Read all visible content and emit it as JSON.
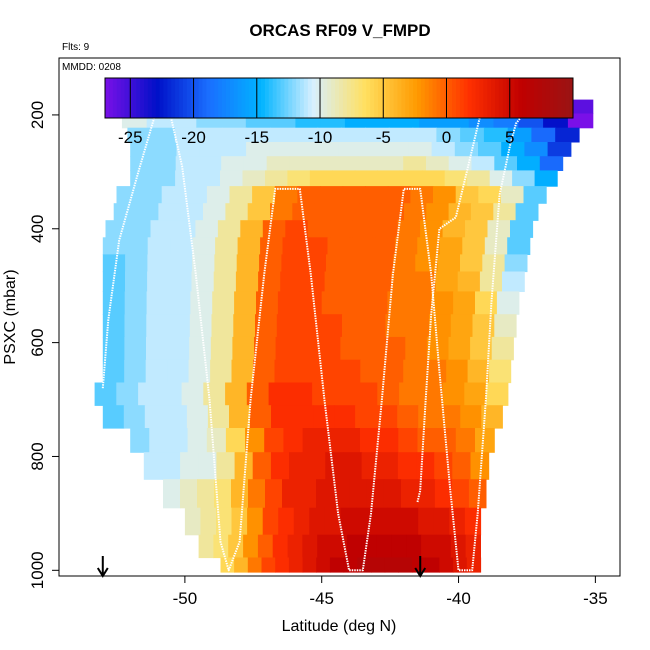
{
  "chart_data": {
    "type": "heatmap",
    "title": "ORCAS RF09 V_FMPD",
    "flights_label": "Flts: 9",
    "date_label": "MMDD: 0208",
    "xlabel": "Latitude (deg N)",
    "ylabel": "PSXC (mbar)",
    "xlim": [
      -54.6,
      -34.1
    ],
    "ylim": [
      1010,
      100
    ],
    "xticks": [
      -50,
      -45,
      -40,
      -35
    ],
    "xtick_labels": [
      "-50",
      "-45",
      "-40",
      "-35"
    ],
    "yticks": [
      200,
      400,
      600,
      800,
      1000
    ],
    "ytick_labels": [
      "200",
      "400",
      "600",
      "800",
      "1000"
    ],
    "colorbar": {
      "range": [
        -27,
        10
      ],
      "ticks": [
        -25,
        -20,
        -15,
        -10,
        -5,
        0,
        5
      ],
      "tick_labels": [
        "-25",
        "-20",
        "-15",
        "-10",
        "-5",
        "0",
        "5"
      ],
      "colors": [
        "#7a10e8",
        "#0010c8",
        "#1a6fff",
        "#00b4ff",
        "#d8f0ff",
        "#ffe060",
        "#ff9a00",
        "#ff3000",
        "#c00000",
        "#9a1414"
      ]
    },
    "pressure_rows": [
      {
        "p": 185,
        "lat_start": -52.3,
        "lat_end": -35.1,
        "values": [
          -11,
          -11,
          -11,
          -12,
          -12,
          -12,
          -13,
          -14,
          -14,
          -15,
          -15,
          -16,
          -17,
          -18,
          -19,
          -20,
          -22,
          -24,
          -26
        ]
      },
      {
        "p": 210,
        "lat_start": -52.3,
        "lat_end": -35.1,
        "values": [
          -10,
          -11,
          -11,
          -12,
          -12,
          -13,
          -13,
          -14,
          -14,
          -15,
          -15,
          -15,
          -16,
          -16,
          -17,
          -18,
          -20,
          -23,
          -27
        ]
      },
      {
        "p": 235,
        "lat_start": -52.1,
        "lat_end": -35.6,
        "values": [
          -12,
          -12,
          -11,
          -11,
          -11,
          -11,
          -11,
          -11,
          -11,
          -11,
          -11,
          -11,
          -11,
          -12,
          -13,
          -14,
          -16,
          -19,
          -22
        ]
      },
      {
        "p": 260,
        "lat_start": -52.0,
        "lat_end": -35.9,
        "values": [
          -12,
          -12,
          -11,
          -11,
          -11,
          -10,
          -10,
          -10,
          -10,
          -10,
          -10,
          -10,
          -10,
          -11,
          -12,
          -13,
          -15,
          -17,
          -21
        ]
      },
      {
        "p": 285,
        "lat_start": -52.0,
        "lat_end": -36.2,
        "values": [
          -12,
          -12,
          -11,
          -11,
          -10,
          -10,
          -9,
          -9,
          -9,
          -9,
          -9,
          -9,
          -8,
          -9,
          -10,
          -11,
          -13,
          -15,
          -19
        ]
      },
      {
        "p": 310,
        "lat_start": -52.0,
        "lat_end": -36.4,
        "values": [
          -12,
          -12,
          -11,
          -11,
          -10,
          -9,
          -8,
          -7,
          -6,
          -6,
          -6,
          -6,
          -6,
          -6,
          -7,
          -8,
          -10,
          -12,
          -15
        ]
      },
      {
        "p": 340,
        "lat_start": -52.5,
        "lat_end": -36.8,
        "values": [
          -12,
          -12,
          -11,
          -11,
          -10,
          -8,
          -5,
          -1,
          0,
          0,
          0,
          0,
          0,
          -1,
          -2,
          -5,
          -6,
          -9,
          -13
        ]
      },
      {
        "p": 370,
        "lat_start": -52.6,
        "lat_end": -37.1,
        "values": [
          -12,
          -12,
          -11,
          -11,
          -10,
          -8,
          -5,
          -1,
          0,
          0,
          0,
          0,
          0,
          -1,
          -2,
          -4,
          -5,
          -8,
          -13
        ]
      },
      {
        "p": 400,
        "lat_start": -52.9,
        "lat_end": -37.3,
        "values": [
          -12,
          -12,
          -11,
          -11,
          -10,
          -8,
          -4,
          0,
          1,
          0,
          0,
          0,
          0,
          -1,
          -2,
          -4,
          -5,
          -9,
          -13
        ]
      },
      {
        "p": 430,
        "lat_start": -53.0,
        "lat_end": -37.4,
        "values": [
          -12,
          -12,
          -11,
          -11,
          -10,
          -8,
          -4,
          0,
          1,
          1,
          0,
          0,
          0,
          -1,
          -2,
          -3,
          -5,
          -9,
          -13
        ]
      },
      {
        "p": 460,
        "lat_start": -53.0,
        "lat_end": -37.5,
        "values": [
          -13,
          -12,
          -11,
          -11,
          -10,
          -8,
          -4,
          0,
          1,
          1,
          0,
          0,
          0,
          -1,
          -2,
          -3,
          -5,
          -8,
          -12
        ]
      },
      {
        "p": 490,
        "lat_start": -53.0,
        "lat_end": -37.6,
        "values": [
          -13,
          -12,
          -11,
          -11,
          -10,
          -8,
          -4,
          0,
          1,
          1,
          0,
          0,
          0,
          -1,
          -1,
          -3,
          -4,
          -8,
          -11
        ]
      },
      {
        "p": 530,
        "lat_start": -53.0,
        "lat_end": -37.8,
        "values": [
          -13,
          -12,
          -11,
          -11,
          -10,
          -8,
          -4,
          0,
          1,
          1,
          0,
          0,
          0,
          -1,
          -1,
          -2,
          -3,
          -6,
          -10
        ]
      },
      {
        "p": 570,
        "lat_start": -53.0,
        "lat_end": -37.9,
        "values": [
          -13,
          -12,
          -11,
          -11,
          -10,
          -8,
          -4,
          0,
          1,
          1,
          1,
          0,
          0,
          -1,
          -1,
          -2,
          -3,
          -5,
          -9
        ]
      },
      {
        "p": 610,
        "lat_start": -53.0,
        "lat_end": -38.0,
        "values": [
          -13,
          -12,
          -11,
          -11,
          -10,
          -8,
          -4,
          0,
          1,
          1,
          1,
          0,
          0,
          0,
          -1,
          -2,
          -3,
          -5,
          -8
        ]
      },
      {
        "p": 650,
        "lat_start": -53.0,
        "lat_end": -38.1,
        "values": [
          -13,
          -12,
          -11,
          -11,
          -10,
          -8,
          -4,
          0,
          1,
          1,
          1,
          1,
          0,
          0,
          -1,
          -1,
          -2,
          -4,
          -7
        ]
      },
      {
        "p": 690,
        "lat_start": -53.3,
        "lat_end": -38.2,
        "values": [
          -13,
          -12,
          -11,
          -11,
          -10,
          -8,
          -4,
          0,
          2,
          2,
          1,
          1,
          1,
          0,
          -1,
          -1,
          -2,
          -3,
          -6
        ]
      },
      {
        "p": 730,
        "lat_start": -53.0,
        "lat_end": -38.4,
        "values": [
          -13,
          -12,
          -11,
          -11,
          -10,
          -8,
          -4,
          0,
          2,
          2,
          2,
          2,
          1,
          1,
          0,
          -1,
          -1,
          -2,
          -4
        ]
      },
      {
        "p": 770,
        "lat_start": -52.0,
        "lat_end": -38.7,
        "values": [
          -12,
          -11,
          -11,
          -10,
          -9,
          -6,
          -2,
          1,
          2,
          3,
          3,
          3,
          2,
          2,
          1,
          0,
          0,
          -1,
          -3
        ]
      },
      {
        "p": 815,
        "lat_start": -51.5,
        "lat_end": -38.9,
        "values": [
          -11,
          -11,
          -10,
          -10,
          -8,
          -4,
          0,
          2,
          3,
          3,
          4,
          4,
          3,
          3,
          2,
          2,
          1,
          0,
          -2
        ]
      },
      {
        "p": 865,
        "lat_start": -50.8,
        "lat_end": -39.0,
        "values": [
          -10,
          -9,
          -8,
          -7,
          -4,
          -1,
          1,
          3,
          3,
          4,
          4,
          4,
          4,
          4,
          3,
          3,
          2,
          1,
          0
        ]
      },
      {
        "p": 915,
        "lat_start": -50.0,
        "lat_end": -39.2,
        "values": [
          -9,
          -8,
          -7,
          -5,
          -2,
          1,
          2,
          3,
          4,
          4,
          5,
          5,
          5,
          5,
          5,
          4,
          4,
          3,
          2
        ]
      },
      {
        "p": 960,
        "lat_start": -49.5,
        "lat_end": -39.2,
        "values": [
          -8,
          -7,
          -5,
          -2,
          0,
          2,
          3,
          4,
          5,
          5,
          6,
          6,
          6,
          6,
          6,
          5,
          5,
          4,
          3
        ]
      },
      {
        "p": 995,
        "lat_start": -48.7,
        "lat_end": -39.2,
        "values": [
          -6,
          -4,
          -1,
          1,
          2,
          3,
          4,
          5,
          6,
          6,
          7,
          7,
          7,
          7,
          6,
          6,
          5,
          4,
          3
        ]
      }
    ],
    "flight_track": [
      [
        -53.0,
        680
      ],
      [
        -52.8,
        560
      ],
      [
        -52.4,
        420
      ],
      [
        -51.7,
        300
      ],
      [
        -51.0,
        185
      ],
      [
        -50.6,
        185
      ],
      [
        -50.1,
        290
      ],
      [
        -49.6,
        480
      ],
      [
        -49.1,
        700
      ],
      [
        -48.7,
        950
      ],
      [
        -48.4,
        1000
      ],
      [
        -48.0,
        950
      ],
      [
        -47.6,
        700
      ],
      [
        -47.1,
        480
      ],
      [
        -46.7,
        330
      ],
      [
        -45.8,
        330
      ],
      [
        -45.4,
        480
      ],
      [
        -44.9,
        700
      ],
      [
        -44.4,
        900
      ],
      [
        -44.0,
        1000
      ],
      [
        -43.5,
        1000
      ],
      [
        -43.2,
        900
      ],
      [
        -42.8,
        700
      ],
      [
        -42.4,
        480
      ],
      [
        -42.0,
        330
      ],
      [
        -41.4,
        330
      ],
      [
        -41.0,
        480
      ],
      [
        -40.7,
        650
      ],
      [
        -40.3,
        860
      ],
      [
        -40.0,
        1000
      ],
      [
        -39.5,
        1000
      ],
      [
        -39.3,
        900
      ],
      [
        -39.0,
        700
      ],
      [
        -38.8,
        530
      ],
      [
        -38.5,
        340
      ],
      [
        -38.1,
        250
      ],
      [
        -37.9,
        215
      ],
      [
        -37.4,
        185
      ],
      [
        -36.8,
        185
      ],
      [
        -36.4,
        185
      ]
    ],
    "flight_track_2": [
      [
        -41.5,
        880
      ],
      [
        -41.4,
        860
      ],
      [
        -41.2,
        700
      ],
      [
        -41.0,
        550
      ],
      [
        -40.7,
        400
      ],
      [
        -40.1,
        380
      ],
      [
        -39.7,
        300
      ],
      [
        -39.2,
        200
      ],
      [
        -38.6,
        185
      ],
      [
        -38.2,
        185
      ]
    ],
    "markers_lat": [
      -53.0,
      -41.4
    ]
  }
}
